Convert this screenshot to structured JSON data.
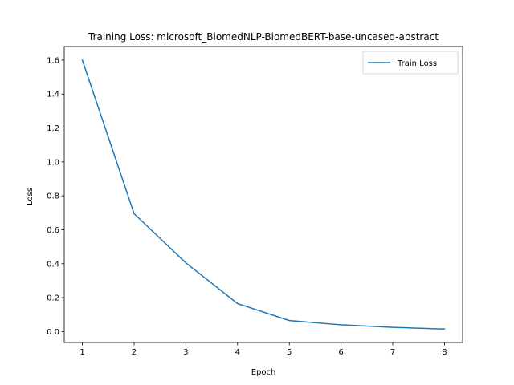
{
  "chart_data": {
    "type": "line",
    "title": "Training Loss: microsoft_BiomedNLP-BiomedBERT-base-uncased-abstract",
    "xlabel": "Epoch",
    "ylabel": "Loss",
    "x": [
      1,
      2,
      3,
      4,
      5,
      6,
      7,
      8
    ],
    "series": [
      {
        "name": "Train Loss",
        "color": "#1f77b4",
        "values": [
          1.6,
          0.695,
          0.405,
          0.165,
          0.065,
          0.04,
          0.025,
          0.015
        ]
      }
    ],
    "xlim": [
      0.65,
      8.35
    ],
    "ylim": [
      -0.0643,
      1.68
    ],
    "xticks": [
      "1",
      "2",
      "3",
      "4",
      "5",
      "6",
      "7",
      "8"
    ],
    "yticks": [
      "0.0",
      "0.2",
      "0.4",
      "0.6",
      "0.8",
      "1.0",
      "1.2",
      "1.4",
      "1.6"
    ],
    "grid": false,
    "legend_position": "upper right"
  }
}
